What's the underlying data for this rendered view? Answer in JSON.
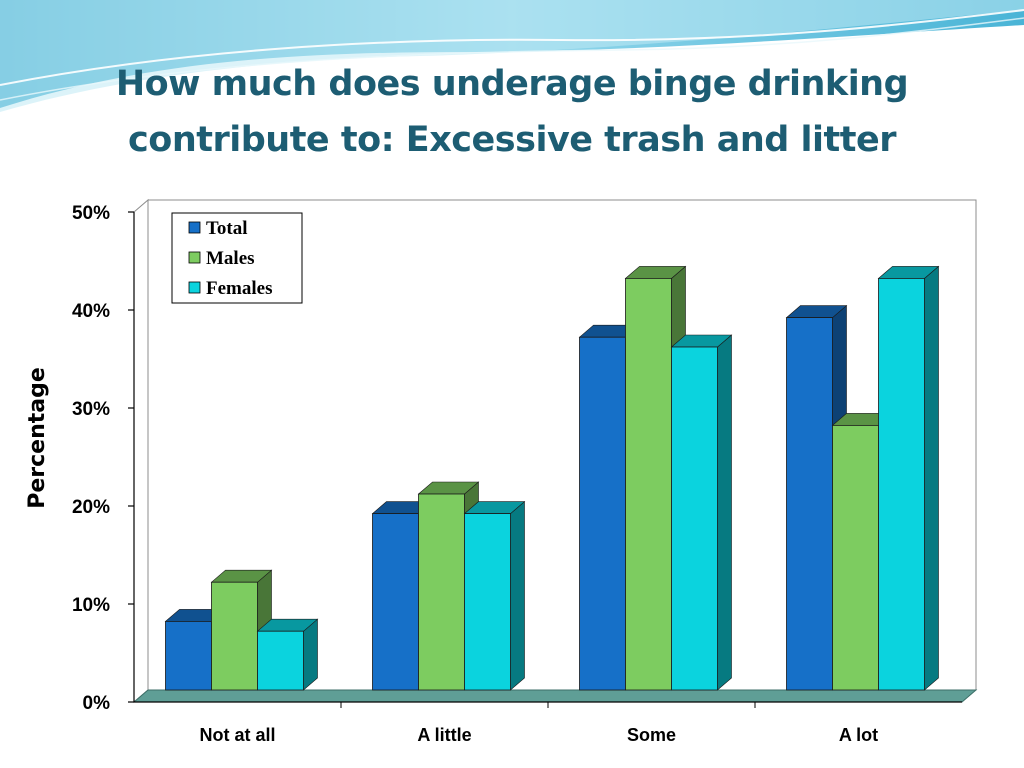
{
  "slide": {
    "title_line1": "How much does underage binge drinking",
    "title_line2": "contribute to: Excessive trash and litter"
  },
  "chart_data": {
    "type": "bar",
    "title": "",
    "xlabel": "",
    "ylabel": "Percentage",
    "ylim": [
      0,
      50
    ],
    "y_ticks": [
      "0%",
      "10%",
      "20%",
      "30%",
      "40%",
      "50%"
    ],
    "categories": [
      "Not at all",
      "A little",
      "Some",
      "A lot"
    ],
    "series": [
      {
        "name": "Total",
        "values": [
          7,
          18,
          36,
          38
        ],
        "color": "#1670c8"
      },
      {
        "name": "Males",
        "values": [
          11,
          20,
          42,
          27
        ],
        "color": "#7dcc60"
      },
      {
        "name": "Females",
        "values": [
          6,
          18,
          35,
          42
        ],
        "color": "#0bd3de"
      }
    ],
    "legend": "top-left",
    "grid": false,
    "style": "3d-clustered"
  }
}
